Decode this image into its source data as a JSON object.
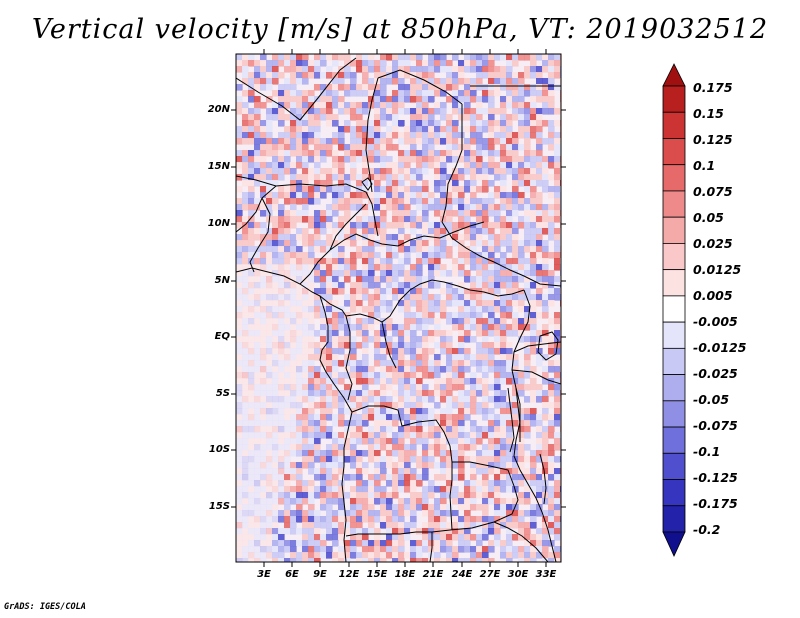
{
  "title": "Vertical velocity [m/s] at 850hPa, VT: 2019032512",
  "credit": "GrADS: IGES/COLA",
  "map": {
    "variable": "Vertical velocity",
    "units": "m/s",
    "level": "850hPa",
    "valid_time": "2019032512",
    "lat_labels": [
      "20N",
      "15N",
      "10N",
      "5N",
      "EQ",
      "5S",
      "10S",
      "15S"
    ],
    "lon_labels": [
      "3E",
      "6E",
      "9E",
      "12E",
      "15E",
      "18E",
      "21E",
      "24E",
      "27E",
      "30E",
      "33E"
    ]
  },
  "colorbar": {
    "levels": [
      "0.175",
      "0.15",
      "0.125",
      "0.1",
      "0.075",
      "0.05",
      "0.025",
      "0.0125",
      "0.005",
      "-0.005",
      "-0.0125",
      "-0.025",
      "-0.05",
      "-0.075",
      "-0.1",
      "-0.125",
      "-0.175",
      "-0.2"
    ],
    "colors": [
      "#a01010",
      "#b82020",
      "#cc3333",
      "#db4c4c",
      "#e66a6a",
      "#ef8a8a",
      "#f5aaaa",
      "#fac8c8",
      "#fde2e2",
      "#ffffff",
      "#e4e4fb",
      "#c9c9f5",
      "#aeaeef",
      "#8f8fe6",
      "#7070dc",
      "#5050cf",
      "#3535c0",
      "#2222aa",
      "#10108f"
    ]
  }
}
